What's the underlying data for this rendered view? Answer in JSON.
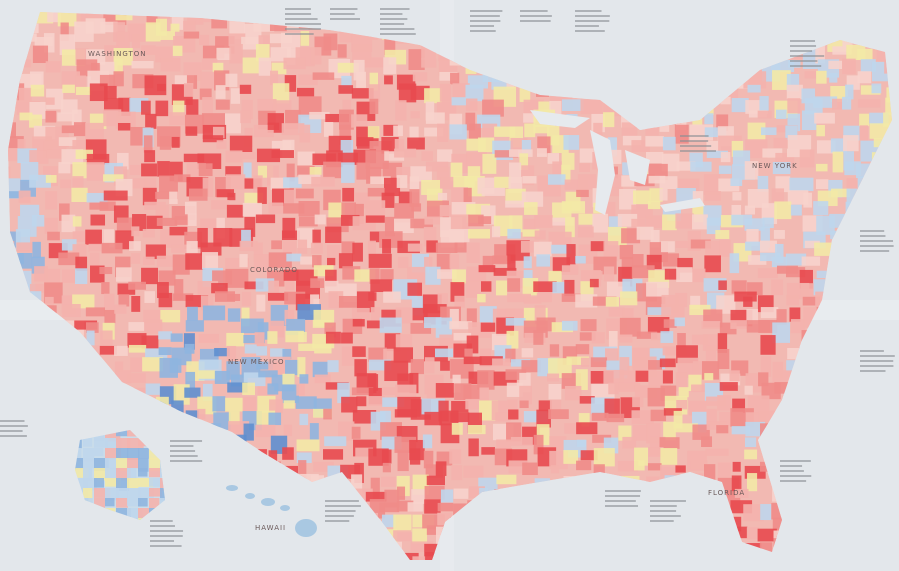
{
  "map": {
    "labels": [
      "WASHINGTON",
      "COLORADO",
      "NEW MEXICO",
      "NEW YORK",
      "HAWAII",
      "FLORIDA"
    ]
  }
}
